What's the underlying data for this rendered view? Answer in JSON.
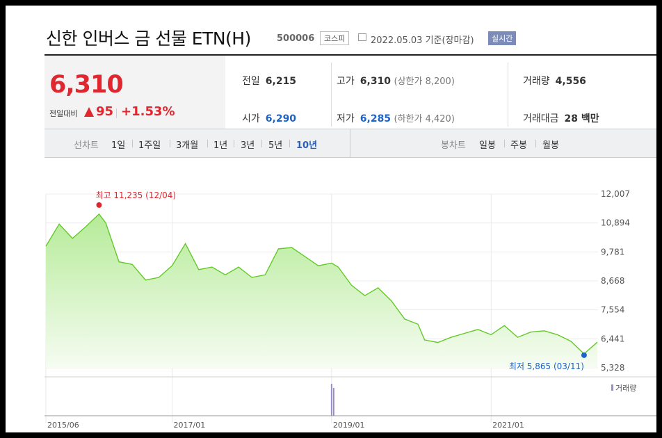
{
  "header": {
    "title": "신한 인버스 금 선물 ETN(H)",
    "code": "500006",
    "market": "코스피",
    "date": "2022.05.03",
    "basis": "기준(장마감)",
    "realtime_button": "실시간"
  },
  "quote": {
    "price": "6,310",
    "change_label": "전일대비",
    "change": "95",
    "change_pct": "+1.53%",
    "prev_close_label": "전일",
    "prev_close": "6,215",
    "open_label": "시가",
    "open": "6,290",
    "high_label": "고가",
    "high": "6,310",
    "upper_limit": "(상한가 8,200)",
    "low_label": "저가",
    "low": "6,285",
    "lower_limit": "(하한가 4,420)",
    "volume_label": "거래량",
    "volume": "4,556",
    "value_label": "거래대금",
    "value": "28 백만"
  },
  "tabs": {
    "line_chart_label": "선차트",
    "periods": [
      "1일",
      "1주일",
      "3개월",
      "1년",
      "3년",
      "5년",
      "10년"
    ],
    "selected_period": "10년",
    "candle_chart_label": "봉차트",
    "candle_periods": [
      "일봉",
      "주봉",
      "월봉"
    ]
  },
  "colors": {
    "up": "#e0262f",
    "down": "#1e63c8",
    "line": "#62c928",
    "volume": "#9b8ec6"
  },
  "chart_data": {
    "type": "area",
    "x_ticks": [
      "2015/06",
      "2017/01",
      "2019/01",
      "2021/01"
    ],
    "y_ticks": [
      "12,007",
      "10,894",
      "9,781",
      "8,668",
      "7,554",
      "6,441",
      "5,328"
    ],
    "ylim": [
      5328,
      12007
    ],
    "x": [
      "2015/06",
      "2015/08",
      "2015/10",
      "2015/12",
      "2016/02",
      "2016/03",
      "2016/05",
      "2016/07",
      "2016/09",
      "2016/11",
      "2017/01",
      "2017/03",
      "2017/05",
      "2017/07",
      "2017/09",
      "2017/11",
      "2018/01",
      "2018/03",
      "2018/05",
      "2018/07",
      "2018/09",
      "2018/11",
      "2019/01",
      "2019/02",
      "2019/04",
      "2019/06",
      "2019/08",
      "2019/10",
      "2019/12",
      "2020/02",
      "2020/03",
      "2020/05",
      "2020/07",
      "2020/09",
      "2020/11",
      "2021/01",
      "2021/03",
      "2021/05",
      "2021/07",
      "2021/09",
      "2021/11",
      "2022/01",
      "2022/03",
      "2022/05"
    ],
    "values": [
      10000,
      10850,
      10300,
      10750,
      11235,
      10900,
      9400,
      9300,
      8700,
      8800,
      9250,
      10100,
      9100,
      9200,
      8900,
      9200,
      8800,
      8900,
      9900,
      9950,
      9600,
      9250,
      9350,
      9200,
      8500,
      8100,
      8400,
      7900,
      7200,
      7000,
      6400,
      6300,
      6500,
      6650,
      6800,
      6600,
      6950,
      6500,
      6700,
      6750,
      6600,
      6350,
      5865,
      6310
    ],
    "high_label": "최고 11,235 (12/04)",
    "low_label": "최저 5,865 (03/11)",
    "volume_label": "거래량"
  }
}
